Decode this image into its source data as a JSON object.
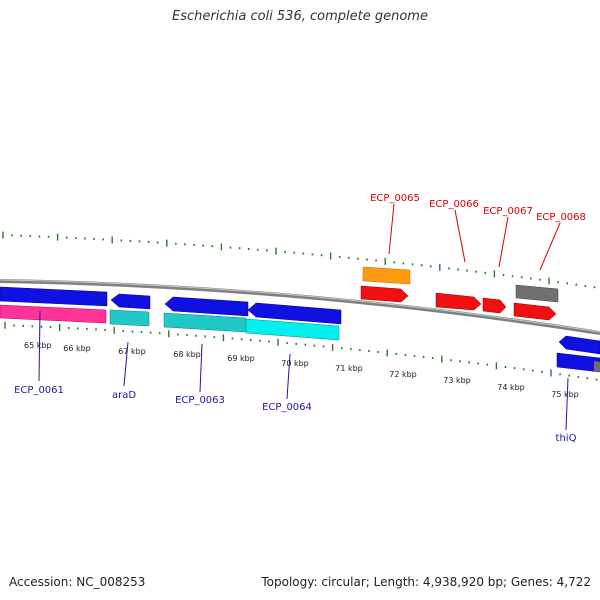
{
  "title": "Escherichia coli 536, complete genome",
  "footer": {
    "accession": "Accession: NC_008253",
    "stats": "Topology: circular; Length: 4,938,920 bp; Genes: 4,722"
  },
  "colors": {
    "forward_cds": "#1010e0",
    "reverse_cds": "#f01010",
    "rna": "#20c8c8",
    "pseudogene": "#ff9a10",
    "other": "#707070",
    "pink": "#ff3399",
    "ticks": "#2a7a2a",
    "top_label": "#d40000",
    "bottom_label": "#1a1aa8"
  },
  "scale_labels": [
    "65 kbp",
    "66 kbp",
    "67 kbp",
    "68 kbp",
    "69 kbp",
    "70 kbp",
    "71 kbp",
    "72 kbp",
    "73 kbp",
    "74 kbp",
    "75 kbp"
  ],
  "top_gene_labels": [
    "ECP_0065",
    "ECP_0066",
    "ECP_0067",
    "ECP_0068"
  ],
  "bottom_gene_labels": [
    "ECP_0061",
    "araD",
    "ECP_0063",
    "ECP_0064",
    "thiQ"
  ]
}
